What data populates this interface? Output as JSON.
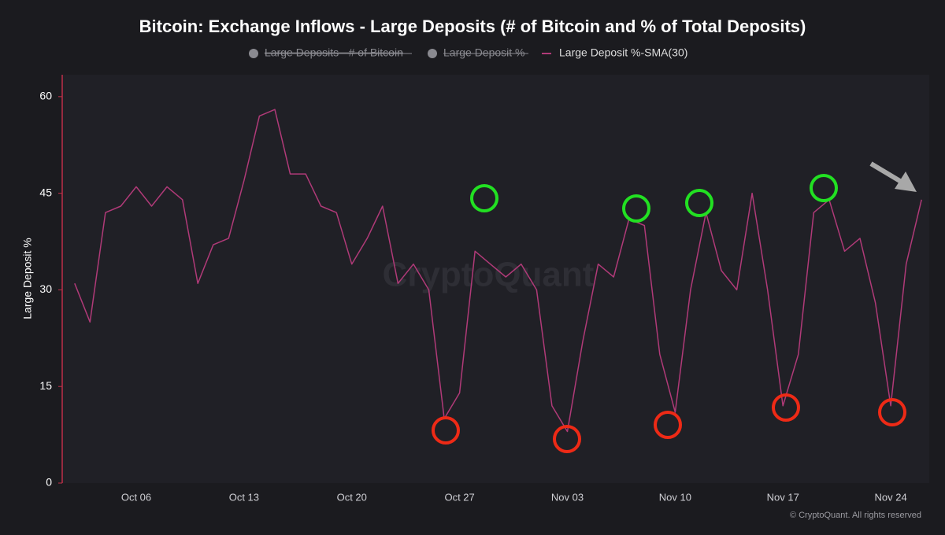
{
  "chart_data": {
    "type": "line",
    "title": "Bitcoin: Exchange Inflows - Large Deposits (# of Bitcoin and % of Total Deposits)",
    "hidden_legend": [
      "Large Deposits - # of Bitcoin",
      "Large Deposit %"
    ],
    "y_label": "Large Deposit %",
    "watermark": "CryptoQuant",
    "credit": "© CryptoQuant. All rights reserved",
    "categories": [
      null,
      null,
      null,
      null,
      "Oct 06",
      null,
      null,
      null,
      null,
      null,
      null,
      "Oct 13",
      null,
      null,
      null,
      null,
      null,
      null,
      "Oct 20",
      null,
      null,
      null,
      null,
      null,
      null,
      "Oct 27",
      null,
      null,
      null,
      null,
      null,
      null,
      "Nov 03",
      null,
      null,
      null,
      null,
      null,
      null,
      "Nov 10",
      null,
      null,
      null,
      null,
      null,
      null,
      "Nov 17",
      null,
      null,
      null,
      null,
      null,
      null,
      "Nov 24",
      null,
      null
    ],
    "series": [
      {
        "name": "Large Deposit %-SMA(30)",
        "color": "#b03a78",
        "values": [
          31,
          25,
          42,
          43,
          46,
          43,
          46,
          44,
          31,
          37,
          38,
          47,
          57,
          58,
          48,
          48,
          43,
          42,
          34,
          38,
          43,
          31,
          34,
          30,
          10,
          14,
          36,
          34,
          32,
          34,
          30,
          12,
          8,
          22,
          34,
          32,
          41,
          40,
          20,
          11,
          30,
          42,
          33,
          30,
          45,
          30,
          12,
          20,
          42,
          44,
          36,
          38,
          28,
          12,
          34,
          44
        ]
      }
    ],
    "ylim": [
      0,
      63.4
    ],
    "yticks": [
      0,
      15,
      30,
      45,
      60
    ],
    "grid": false
  }
}
